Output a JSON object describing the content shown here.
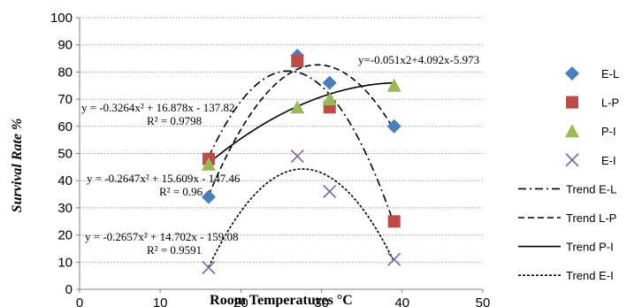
{
  "chart_data": {
    "type": "scatter",
    "xlabel": "Room Temperatures °C",
    "ylabel": "Survival Rate %",
    "xlim": [
      0,
      50
    ],
    "ylim": [
      0,
      100
    ],
    "xticks": [
      0,
      10,
      20,
      30,
      40,
      50
    ],
    "yticks": [
      0,
      10,
      20,
      30,
      40,
      50,
      60,
      70,
      80,
      90,
      100
    ],
    "grid": "horizontal-dotted",
    "legend_position": "right",
    "series": [
      {
        "name": "E-L",
        "marker": "diamond",
        "color": "#4a7ebb",
        "points": [
          [
            16,
            34
          ],
          [
            27,
            86
          ],
          [
            31,
            76
          ],
          [
            39,
            60
          ]
        ]
      },
      {
        "name": "L-P",
        "marker": "square",
        "color": "#be4b48",
        "points": [
          [
            16,
            48
          ],
          [
            27,
            84
          ],
          [
            31,
            67
          ],
          [
            39,
            25
          ]
        ]
      },
      {
        "name": "P-I",
        "marker": "triangle",
        "color": "#98b954",
        "points": [
          [
            16,
            46
          ],
          [
            27,
            67
          ],
          [
            31,
            70
          ],
          [
            39,
            75
          ]
        ]
      },
      {
        "name": "E-I",
        "marker": "x",
        "color": "#7d60a0",
        "points": [
          [
            16,
            8
          ],
          [
            27,
            49
          ],
          [
            31,
            36
          ],
          [
            39,
            11
          ]
        ]
      }
    ],
    "trendlines": [
      {
        "name": "Trend E-L",
        "dash": "dashdot",
        "coeffs": [
          -0.3264,
          16.878,
          -137.82
        ],
        "x_range": [
          16,
          39
        ],
        "equation": "y = -0.3264x² + 16.878x - 137.82",
        "r2": "R² = 0.9798"
      },
      {
        "name": "Trend L-P",
        "dash": "dash",
        "coeffs": [
          -0.2647,
          15.609,
          -147.46
        ],
        "x_range": [
          16,
          39
        ],
        "equation": "y = -0.2647x² + 15.609x - 147.46",
        "r2": "R² = 0.96"
      },
      {
        "name": "Trend P-I",
        "dash": "solid",
        "coeffs": [
          -0.051,
          4.092,
          -5.973
        ],
        "x_range": [
          16,
          39
        ],
        "equation": "y=-0.051x2+4.092x-5.973",
        "r2": ""
      },
      {
        "name": "Trend E-I",
        "dash": "shortdash",
        "coeffs": [
          -0.2657,
          14.702,
          -159.08
        ],
        "x_range": [
          16,
          39
        ],
        "equation": "y = -0.2657x² + 14.702x - 159.08",
        "r2": "R² = 0.9591"
      }
    ]
  }
}
